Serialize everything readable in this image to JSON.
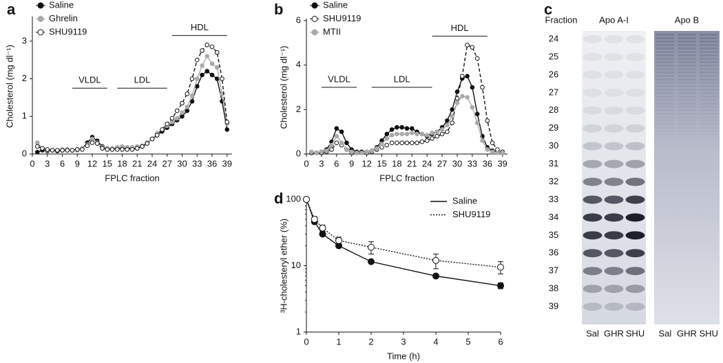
{
  "chart_data": [
    {
      "panel": "a",
      "type": "line",
      "x_label": "FPLC fraction",
      "y_label": "Cholesterol (mg dl⁻¹)",
      "xlim": [
        0,
        40
      ],
      "xticks": [
        0,
        3,
        6,
        9,
        12,
        15,
        18,
        21,
        24,
        27,
        30,
        33,
        36,
        39
      ],
      "ylim": [
        0,
        3.6
      ],
      "yticks": [
        0,
        1,
        2,
        3
      ],
      "legend": "top-left",
      "legend_symbol": "marker",
      "x": [
        1,
        2,
        3,
        4,
        5,
        6,
        7,
        8,
        9,
        10,
        11,
        12,
        13,
        14,
        15,
        16,
        17,
        18,
        19,
        20,
        21,
        22,
        23,
        24,
        25,
        26,
        27,
        28,
        29,
        30,
        31,
        32,
        33,
        34,
        35,
        36,
        37,
        38,
        39
      ],
      "series": [
        {
          "name": "Saline",
          "color": "#111111",
          "marker_fill": "#111111",
          "dash": "solid",
          "values": [
            0.05,
            0.1,
            0.08,
            0.1,
            0.08,
            0.1,
            0.12,
            0.1,
            0.12,
            0.15,
            0.3,
            0.45,
            0.35,
            0.2,
            0.15,
            0.13,
            0.15,
            0.15,
            0.15,
            0.15,
            0.15,
            0.2,
            0.3,
            0.4,
            0.5,
            0.6,
            0.7,
            0.8,
            0.9,
            1.0,
            1.15,
            1.4,
            1.8,
            2.1,
            2.2,
            2.1,
            2.0,
            1.4,
            0.65
          ]
        },
        {
          "name": "Ghrelin",
          "color": "#aaaaaa",
          "marker_fill": "#aaaaaa",
          "dash": "solid",
          "values": [
            0.3,
            0.15,
            0.1,
            0.1,
            0.1,
            0.12,
            0.12,
            0.1,
            0.1,
            0.15,
            0.25,
            0.4,
            0.3,
            0.18,
            0.15,
            0.15,
            0.18,
            0.2,
            0.18,
            0.18,
            0.2,
            0.22,
            0.3,
            0.4,
            0.55,
            0.65,
            0.75,
            0.85,
            0.95,
            1.1,
            1.25,
            1.55,
            2.0,
            2.35,
            2.6,
            2.4,
            2.3,
            1.6,
            0.8
          ]
        },
        {
          "name": "SHU9119",
          "color": "#111111",
          "marker_fill": "#ffffff",
          "dash": "dashed",
          "values": [
            0.2,
            0.15,
            0.12,
            0.1,
            0.1,
            0.1,
            0.1,
            0.1,
            0.12,
            0.12,
            0.22,
            0.3,
            0.28,
            0.15,
            0.12,
            0.12,
            0.12,
            0.12,
            0.12,
            0.12,
            0.15,
            0.2,
            0.28,
            0.4,
            0.5,
            0.65,
            0.8,
            0.95,
            1.15,
            1.35,
            1.6,
            2.0,
            2.5,
            2.75,
            2.9,
            2.85,
            2.7,
            2.0,
            0.85
          ]
        }
      ],
      "annotations": [
        {
          "label": "VLDL",
          "x": [
            8,
            15
          ],
          "y": 1.75
        },
        {
          "label": "LDL",
          "x": [
            17,
            27
          ],
          "y": 1.75
        },
        {
          "label": "HDL",
          "x": [
            28,
            39
          ],
          "y": 3.15
        }
      ]
    },
    {
      "panel": "b",
      "type": "line",
      "x_label": "FPLC fraction",
      "y_label": "Cholesterol (mg dl⁻¹)",
      "xlim": [
        0,
        40
      ],
      "xticks": [
        0,
        3,
        6,
        9,
        12,
        15,
        18,
        21,
        24,
        27,
        30,
        33,
        36,
        39
      ],
      "ylim": [
        0,
        6
      ],
      "yticks": [
        0,
        2,
        4,
        6
      ],
      "legend": "top-left",
      "legend_symbol": "marker",
      "x": [
        1,
        2,
        3,
        4,
        5,
        6,
        7,
        8,
        9,
        10,
        11,
        12,
        13,
        14,
        15,
        16,
        17,
        18,
        19,
        20,
        21,
        22,
        23,
        24,
        25,
        26,
        27,
        28,
        29,
        30,
        31,
        32,
        33,
        34,
        35,
        36,
        37,
        38,
        39
      ],
      "series": [
        {
          "name": "Saline",
          "color": "#111111",
          "marker_fill": "#111111",
          "dash": "solid",
          "values": [
            0.05,
            0.05,
            0.1,
            0.2,
            0.55,
            1.15,
            1.0,
            0.5,
            0.2,
            0.1,
            0.1,
            0.1,
            0.15,
            0.3,
            0.6,
            0.9,
            1.1,
            1.2,
            1.2,
            1.15,
            1.15,
            1.0,
            0.9,
            0.8,
            0.9,
            1.0,
            1.2,
            1.5,
            2.0,
            2.8,
            3.4,
            3.5,
            3.0,
            1.8,
            0.8,
            0.3,
            0.15,
            0.1,
            0.05
          ]
        },
        {
          "name": "SHU9119",
          "color": "#111111",
          "marker_fill": "#ffffff",
          "dash": "dashed",
          "values": [
            0.05,
            0.05,
            0.05,
            0.1,
            0.2,
            0.5,
            0.4,
            0.2,
            0.05,
            0.05,
            0.05,
            0.05,
            0.1,
            0.2,
            0.3,
            0.4,
            0.5,
            0.5,
            0.5,
            0.5,
            0.5,
            0.5,
            0.55,
            0.6,
            0.7,
            0.8,
            0.9,
            1.0,
            1.4,
            2.5,
            3.5,
            4.9,
            4.8,
            4.3,
            3.0,
            1.5,
            0.5,
            0.2,
            0.1
          ]
        },
        {
          "name": "MTII",
          "color": "#aaaaaa",
          "marker_fill": "#aaaaaa",
          "dash": "solid",
          "values": [
            0.1,
            0.05,
            0.1,
            0.15,
            0.4,
            0.8,
            0.5,
            0.2,
            0.1,
            0.05,
            0.05,
            0.1,
            0.15,
            0.25,
            0.45,
            0.7,
            0.85,
            0.9,
            0.9,
            0.9,
            0.95,
            0.9,
            0.9,
            0.85,
            0.95,
            1.0,
            1.1,
            1.3,
            1.7,
            2.3,
            2.6,
            2.55,
            2.1,
            1.4,
            0.6,
            0.2,
            0.1,
            0.05,
            0.05
          ]
        }
      ],
      "annotations": [
        {
          "label": "VLDL",
          "x": [
            3,
            10
          ],
          "y": 3.0
        },
        {
          "label": "LDL",
          "x": [
            13,
            25
          ],
          "y": 3.0
        },
        {
          "label": "HDL",
          "x": [
            25,
            36
          ],
          "y": 5.3
        }
      ]
    },
    {
      "panel": "d",
      "type": "line",
      "x_label": "Time (h)",
      "y_label": "³H-cholesteryl ether (%)",
      "xlim": [
        0,
        6
      ],
      "xticks": [
        0,
        1,
        2,
        3,
        4,
        5,
        6
      ],
      "ylim": [
        1,
        100
      ],
      "yticks": [
        1,
        10,
        100
      ],
      "log_y": true,
      "legend": "top-right",
      "legend_symbol": "line",
      "x": [
        0,
        0.25,
        0.5,
        1,
        2,
        4,
        6
      ],
      "series": [
        {
          "name": "Saline",
          "color": "#111111",
          "marker_fill": "#111111",
          "dash": "solid",
          "values": [
            100,
            46,
            30,
            20,
            11.5,
            7,
            5
          ],
          "errors": [
            0,
            2,
            1.5,
            1,
            0.5,
            0.4,
            0.5
          ]
        },
        {
          "name": "SHU9119",
          "color": "#111111",
          "marker_fill": "#ffffff",
          "dash": "dotted",
          "values": [
            100,
            50,
            37,
            24,
            19,
            12,
            9.5
          ],
          "errors": [
            0,
            5,
            4,
            3,
            4,
            3,
            2
          ]
        }
      ]
    }
  ],
  "gel": {
    "panel": "c",
    "fraction_header": "Fraction",
    "blots": [
      "Apo A-I",
      "Apo B"
    ],
    "fractions": [
      "24",
      "25",
      "26",
      "27",
      "28",
      "29",
      "30",
      "31",
      "32",
      "33",
      "34",
      "35",
      "36",
      "37",
      "38",
      "39"
    ],
    "lanes": [
      [
        "Sal",
        "GHR",
        "SHU"
      ],
      [
        "Sal",
        "GHR",
        "SHU"
      ]
    ]
  }
}
